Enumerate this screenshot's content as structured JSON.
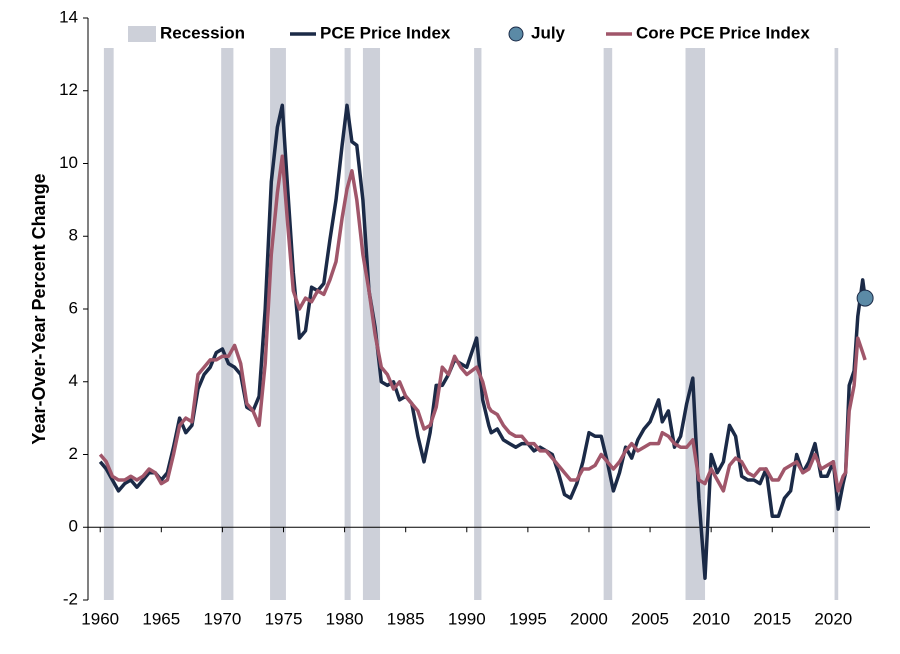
{
  "chart_data": {
    "type": "line",
    "y_label": "Year-Over-Year Percent Change",
    "xlim": [
      1959,
      2023
    ],
    "xticks": [
      1960,
      1965,
      1970,
      1975,
      1980,
      1985,
      1990,
      1995,
      2000,
      2005,
      2010,
      2015,
      2020
    ],
    "ylim": [
      -2,
      14
    ],
    "yticks": [
      -2,
      0,
      2,
      4,
      6,
      8,
      10,
      12,
      14
    ],
    "legend": "top",
    "recession": {
      "name": "Recession",
      "color": "#cdd0d9",
      "ranges": [
        [
          1960.3,
          1961.1
        ],
        [
          1969.9,
          1970.9
        ],
        [
          1973.9,
          1975.2
        ],
        [
          1980.0,
          1980.5
        ],
        [
          1981.5,
          1982.9
        ],
        [
          1990.6,
          1991.2
        ],
        [
          2001.2,
          2001.9
        ],
        [
          2007.9,
          2009.5
        ],
        [
          2020.1,
          2020.4
        ]
      ]
    },
    "x": [
      1960,
      1960.5,
      1961,
      1961.5,
      1962,
      1962.5,
      1963,
      1963.5,
      1964,
      1964.5,
      1965,
      1965.5,
      1966,
      1966.5,
      1967,
      1967.5,
      1968,
      1968.5,
      1969,
      1969.5,
      1970,
      1970.5,
      1971,
      1971.5,
      1972,
      1972.5,
      1973,
      1973.5,
      1974,
      1974.5,
      1974.9,
      1975.3,
      1975.8,
      1976.3,
      1976.8,
      1977.3,
      1977.8,
      1978.3,
      1978.8,
      1979.3,
      1979.8,
      1980.2,
      1980.6,
      1981,
      1981.5,
      1982,
      1982.5,
      1983,
      1983.5,
      1984,
      1984.5,
      1985,
      1985.5,
      1986,
      1986.5,
      1987,
      1987.5,
      1988,
      1988.5,
      1989,
      1989.5,
      1990,
      1990.8,
      1991.3,
      1991.8,
      1992,
      1992.5,
      1993,
      1993.5,
      1994,
      1994.5,
      1995,
      1995.5,
      1996,
      1996.5,
      1997,
      1997.5,
      1998,
      1998.5,
      1999,
      1999.5,
      2000,
      2000.5,
      2001,
      2001.5,
      2002,
      2002.5,
      2003,
      2003.5,
      2004,
      2004.5,
      2005,
      2005.7,
      2006,
      2006.5,
      2007,
      2007.5,
      2008,
      2008.5,
      2009,
      2009.5,
      2010,
      2010.5,
      2011,
      2011.5,
      2012,
      2012.5,
      2013,
      2013.5,
      2014,
      2014.5,
      2015,
      2015.5,
      2016,
      2016.5,
      2017,
      2017.5,
      2018,
      2018.5,
      2019,
      2019.5,
      2020,
      2020.4,
      2020.8,
      2021,
      2021.3,
      2021.7,
      2022,
      2022.4,
      2022.6
    ],
    "series": [
      {
        "name": "PCE Price Index",
        "color": "#1b2a47",
        "values": [
          1.8,
          1.6,
          1.3,
          1.0,
          1.2,
          1.3,
          1.1,
          1.3,
          1.5,
          1.5,
          1.3,
          1.5,
          2.2,
          3.0,
          2.6,
          2.8,
          3.8,
          4.2,
          4.4,
          4.8,
          4.9,
          4.5,
          4.4,
          4.2,
          3.3,
          3.2,
          3.6,
          6.0,
          9.5,
          11.0,
          11.6,
          9.5,
          7.0,
          5.2,
          5.4,
          6.6,
          6.5,
          6.7,
          7.9,
          9.0,
          10.5,
          11.6,
          10.6,
          10.5,
          9.0,
          6.5,
          5.5,
          4.0,
          3.9,
          4.0,
          3.5,
          3.6,
          3.4,
          2.5,
          1.8,
          2.6,
          3.9,
          3.9,
          4.2,
          4.6,
          4.5,
          4.4,
          5.2,
          3.5,
          2.8,
          2.6,
          2.7,
          2.4,
          2.3,
          2.2,
          2.3,
          2.3,
          2.1,
          2.2,
          2.1,
          2.0,
          1.5,
          0.9,
          0.8,
          1.2,
          1.8,
          2.6,
          2.5,
          2.5,
          1.8,
          1.0,
          1.5,
          2.2,
          1.9,
          2.4,
          2.7,
          2.9,
          3.5,
          2.9,
          3.2,
          2.2,
          2.5,
          3.4,
          4.1,
          0.8,
          -1.4,
          2.0,
          1.5,
          1.8,
          2.8,
          2.5,
          1.4,
          1.3,
          1.3,
          1.2,
          1.6,
          0.3,
          0.3,
          0.8,
          1.0,
          2.0,
          1.5,
          1.8,
          2.3,
          1.4,
          1.4,
          1.8,
          0.5,
          1.2,
          1.5,
          3.9,
          4.3,
          5.8,
          6.8,
          6.3
        ]
      },
      {
        "name": "Core PCE Price Index",
        "color": "#a0566a",
        "values": [
          2.0,
          1.8,
          1.4,
          1.3,
          1.3,
          1.4,
          1.3,
          1.4,
          1.6,
          1.5,
          1.2,
          1.3,
          2.0,
          2.8,
          3.0,
          2.9,
          4.2,
          4.4,
          4.6,
          4.6,
          4.7,
          4.7,
          5.0,
          4.5,
          3.4,
          3.2,
          2.8,
          4.5,
          7.5,
          9.2,
          10.2,
          8.5,
          6.5,
          6.0,
          6.3,
          6.2,
          6.5,
          6.4,
          6.8,
          7.3,
          8.5,
          9.3,
          9.8,
          9.0,
          7.5,
          6.5,
          5.3,
          4.4,
          4.2,
          3.8,
          4.0,
          3.6,
          3.4,
          3.2,
          2.7,
          2.8,
          3.3,
          4.4,
          4.2,
          4.7,
          4.4,
          4.2,
          4.4,
          4.0,
          3.3,
          3.2,
          3.1,
          2.8,
          2.6,
          2.5,
          2.5,
          2.3,
          2.3,
          2.1,
          2.1,
          1.9,
          1.7,
          1.5,
          1.3,
          1.3,
          1.6,
          1.6,
          1.7,
          2.0,
          1.8,
          1.6,
          1.8,
          2.1,
          2.3,
          2.1,
          2.2,
          2.3,
          2.3,
          2.6,
          2.5,
          2.3,
          2.2,
          2.2,
          2.4,
          1.3,
          1.2,
          1.6,
          1.3,
          1.0,
          1.7,
          1.9,
          1.8,
          1.5,
          1.4,
          1.6,
          1.6,
          1.3,
          1.3,
          1.6,
          1.7,
          1.8,
          1.5,
          1.6,
          2.0,
          1.6,
          1.7,
          1.8,
          1.0,
          1.4,
          1.5,
          3.2,
          3.9,
          5.2,
          4.8,
          4.6
        ]
      }
    ],
    "highlight": {
      "name": "July",
      "color": "#5b8aa6",
      "x": 2022.6,
      "value": 6.3
    }
  }
}
